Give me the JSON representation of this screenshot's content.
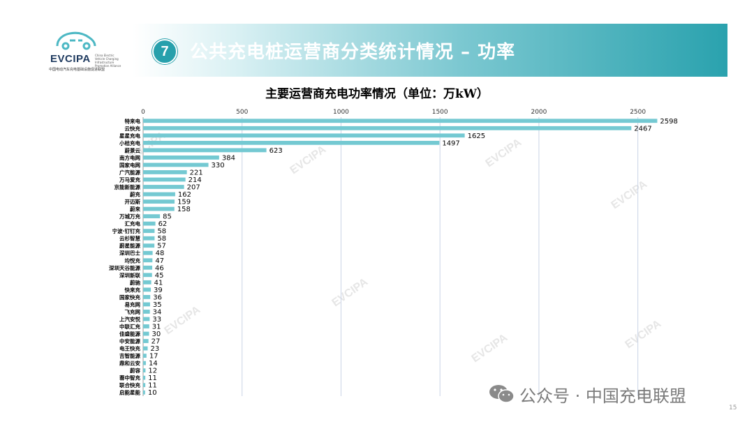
{
  "logo": {
    "name": "EVCIPA",
    "tagline": "China Electric Vehicle Charging Infrastructure Promotion Alliance",
    "subtitle": "中国电动汽车充电基础设施促进联盟"
  },
  "header": {
    "badge": "7",
    "title": "公共充电桩运营商分类统计情况 – 功率",
    "accent_color": "#27a0ac"
  },
  "footer": {
    "account": "公众号 · 中国充电联盟",
    "page_number": "15"
  },
  "watermark": "EVCIPA",
  "chart_data": {
    "type": "bar",
    "orientation": "horizontal",
    "title": "主要运营商充电功率情况（单位：万kW）",
    "xlim": [
      0,
      2600
    ],
    "x_ticks": [
      0,
      500,
      1000,
      1500,
      2000,
      2500
    ],
    "grid": true,
    "bar_color": "#74c9d2",
    "categories": [
      "特来电",
      "云快充",
      "星星充电",
      "小桔充电",
      "蔚景云",
      "南方电网",
      "国家电网",
      "广汽能源",
      "万马爱充",
      "京能新能源",
      "蔚充",
      "开迈斯",
      "蔚来",
      "万城万充",
      "汇充电",
      "宁波·钉钉充",
      "云杉智慧",
      "蔚星能源",
      "深圳巴士",
      "均悦充",
      "深圳天谷能源",
      "深圳新联",
      "蔚驰",
      "快来充",
      "国家快充",
      "易充网",
      "飞充网",
      "上汽安悦",
      "中联汇充",
      "佳盛能源",
      "中安能源",
      "电王快充",
      "吉智能源",
      "鼎和云安",
      "蔚容",
      "蓉中智充",
      "联合快充",
      "启能星能"
    ],
    "values": [
      2598,
      2467,
      1625,
      1497,
      623,
      384,
      330,
      221,
      214,
      207,
      162,
      159,
      158,
      85,
      62,
      58,
      58,
      57,
      48,
      47,
      46,
      45,
      41,
      39,
      36,
      35,
      34,
      33,
      31,
      30,
      27,
      23,
      17,
      14,
      12,
      11,
      11,
      10
    ]
  }
}
